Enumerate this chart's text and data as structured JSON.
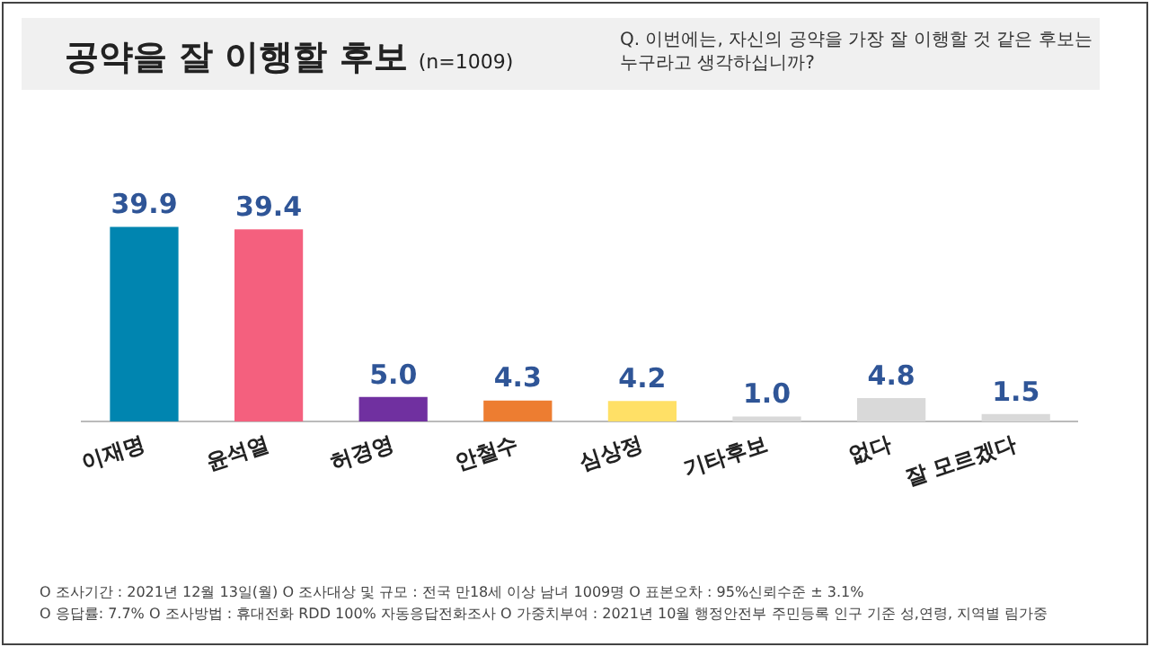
{
  "chart_data": {
    "type": "bar",
    "title": "공약을 잘 이행할 후보",
    "subtitle": "(n=1009)",
    "categories": [
      "이재명",
      "윤석열",
      "허경영",
      "안철수",
      "심상정",
      "기타후보",
      "없다",
      "잘 모르겠다"
    ],
    "values": [
      39.9,
      39.4,
      5.0,
      4.3,
      4.2,
      1.0,
      4.8,
      1.5
    ],
    "colors": [
      "#0085b0",
      "#f4607e",
      "#7030a0",
      "#ed7d31",
      "#ffe066",
      "#d9d9d9",
      "#d9d9d9",
      "#d9d9d9"
    ],
    "value_labels": [
      "39.9",
      "39.4",
      "5.0",
      "4.3",
      "4.2",
      "1.0",
      "4.8",
      "1.5"
    ],
    "grid": false,
    "legend": false,
    "annotations": [
      "Q. 이번에는, 자신의 공약을 가장 잘 이행할 것 같은 후보는 누구라고 생각하십니까?",
      "O 조사기간 : 2021년 12월 13일(월)    O 조사대상 및 규모 : 전국 만18세 이상 남녀 1009명    O 표본오차 : 95%신뢰수준 ± 3.1%",
      "O 응답률: 7.7%    O 조사방법 : 휴대전화 RDD 100% 자동응답전화조사    O 가중치부여 : 2021년 10월 행정안전부 주민등록 인구 기준 성,연령, 지역별 림가중"
    ]
  }
}
